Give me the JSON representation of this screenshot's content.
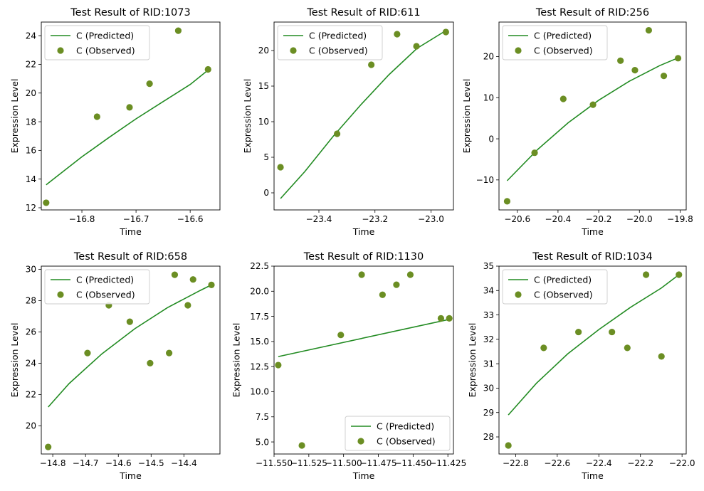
{
  "chart_data": [
    {
      "type": "scatter",
      "title": "Test Result of RID:1073",
      "xlabel": "Time",
      "ylabel": "Expression Level",
      "xlim": [
        -16.875,
        -16.545
      ],
      "ylim": [
        11.85,
        24.95
      ],
      "xticks": [
        -16.8,
        -16.7,
        -16.6
      ],
      "xtick_labels": [
        "−16.8",
        "−16.7",
        "−16.6"
      ],
      "yticks": [
        12,
        14,
        16,
        18,
        20,
        22,
        24
      ],
      "ytick_labels": [
        "12",
        "14",
        "16",
        "18",
        "20",
        "22",
        "24"
      ],
      "legend_position": "upper-left",
      "series": [
        {
          "name": "C (Predicted)",
          "kind": "line",
          "color": "#228b22",
          "x": [
            -16.866,
            -16.8,
            -16.75,
            -16.7,
            -16.65,
            -16.6,
            -16.567
          ],
          "y": [
            13.6,
            15.55,
            16.9,
            18.2,
            19.4,
            20.6,
            21.6
          ]
        },
        {
          "name": "C (Observed)",
          "kind": "scatter",
          "color": "#6b8e23",
          "x": [
            -16.866,
            -16.772,
            -16.712,
            -16.675,
            -16.622,
            -16.567
          ],
          "y": [
            12.35,
            18.35,
            19.0,
            20.65,
            24.35,
            21.65
          ]
        }
      ]
    },
    {
      "type": "scatter",
      "title": "Test Result of RID:611",
      "xlabel": "Time",
      "ylabel": "Expression Level",
      "xlim": [
        -23.56,
        -22.92
      ],
      "ylim": [
        -2.4,
        24.0
      ],
      "xticks": [
        -23.4,
        -23.2,
        -23.0
      ],
      "xtick_labels": [
        "−23.4",
        "−23.2",
        "−23.0"
      ],
      "yticks": [
        0,
        5,
        10,
        15,
        20
      ],
      "ytick_labels": [
        "0",
        "5",
        "10",
        "15",
        "20"
      ],
      "legend_position": "upper-left",
      "series": [
        {
          "name": "C (Predicted)",
          "kind": "line",
          "color": "#228b22",
          "x": [
            -23.537,
            -23.45,
            -23.35,
            -23.25,
            -23.15,
            -23.05,
            -22.947
          ],
          "y": [
            -0.8,
            3.0,
            7.9,
            12.4,
            16.6,
            20.3,
            22.8
          ]
        },
        {
          "name": "C (Observed)",
          "kind": "scatter",
          "color": "#6b8e23",
          "x": [
            -23.537,
            -23.335,
            -23.213,
            -23.121,
            -23.052,
            -22.947
          ],
          "y": [
            3.6,
            8.3,
            18.0,
            22.3,
            20.6,
            22.6
          ]
        }
      ]
    },
    {
      "type": "scatter",
      "title": "Test Result of RID:256",
      "xlabel": "Time",
      "ylabel": "Expression Level",
      "xlim": [
        -20.69,
        -19.77
      ],
      "ylim": [
        -17.3,
        28.4
      ],
      "xticks": [
        -20.6,
        -20.4,
        -20.2,
        -20.0,
        -19.8
      ],
      "xtick_labels": [
        "−20.6",
        "−20.4",
        "−20.2",
        "−20.0",
        "−19.8"
      ],
      "yticks": [
        -10,
        0,
        10,
        20
      ],
      "ytick_labels": [
        "−10",
        "0",
        "10",
        "20"
      ],
      "legend_position": "upper-left",
      "series": [
        {
          "name": "C (Predicted)",
          "kind": "line",
          "color": "#228b22",
          "x": [
            -20.65,
            -20.5,
            -20.35,
            -20.2,
            -20.05,
            -19.9,
            -19.81
          ],
          "y": [
            -10.2,
            -2.6,
            3.9,
            9.4,
            14.0,
            17.8,
            19.7
          ]
        },
        {
          "name": "C (Observed)",
          "kind": "scatter",
          "color": "#6b8e23",
          "x": [
            -20.65,
            -20.515,
            -20.374,
            -20.228,
            -20.093,
            -20.022,
            -19.954,
            -19.88,
            -19.81
          ],
          "y": [
            -15.2,
            -3.4,
            9.7,
            8.3,
            19.0,
            16.7,
            26.4,
            15.3,
            19.6
          ]
        }
      ]
    },
    {
      "type": "scatter",
      "title": "Test Result of RID:658",
      "xlabel": "Time",
      "ylabel": "Expression Level",
      "xlim": [
        -14.835,
        -14.29
      ],
      "ylim": [
        18.2,
        30.2
      ],
      "xticks": [
        -14.8,
        -14.7,
        -14.6,
        -14.5,
        -14.4
      ],
      "xtick_labels": [
        "−14.8",
        "−14.7",
        "−14.6",
        "−14.5",
        "−14.4"
      ],
      "yticks": [
        20,
        22,
        24,
        26,
        28,
        30
      ],
      "ytick_labels": [
        "20",
        "22",
        "24",
        "26",
        "28",
        "30"
      ],
      "legend_position": "upper-left",
      "series": [
        {
          "name": "C (Predicted)",
          "kind": "line",
          "color": "#228b22",
          "x": [
            -14.814,
            -14.75,
            -14.65,
            -14.55,
            -14.45,
            -14.35,
            -14.316
          ],
          "y": [
            21.2,
            22.7,
            24.6,
            26.2,
            27.55,
            28.65,
            29.0
          ]
        },
        {
          "name": "C (Observed)",
          "kind": "scatter",
          "color": "#6b8e23",
          "x": [
            -14.814,
            -14.694,
            -14.629,
            -14.565,
            -14.503,
            -14.445,
            -14.428,
            -14.388,
            -14.372,
            -14.316
          ],
          "y": [
            18.65,
            24.65,
            27.7,
            26.65,
            24.0,
            24.65,
            29.65,
            27.7,
            29.35,
            29.0
          ]
        }
      ]
    },
    {
      "type": "scatter",
      "title": "Test Result of RID:1130",
      "xlabel": "Time",
      "ylabel": "Expression Level",
      "xlim": [
        -11.55,
        -11.421
      ],
      "ylim": [
        3.8,
        22.5
      ],
      "xticks": [
        -11.55,
        -11.525,
        -11.5,
        -11.475,
        -11.45,
        -11.425
      ],
      "xtick_labels": [
        "−11.550",
        "−11.525",
        "−11.500",
        "−11.475",
        "−11.450",
        "−11.425"
      ],
      "yticks": [
        5.0,
        7.5,
        10.0,
        12.5,
        15.0,
        17.5,
        20.0,
        22.5
      ],
      "ytick_labels": [
        "5.0",
        "7.5",
        "10.0",
        "12.5",
        "15.0",
        "17.5",
        "20.0",
        "22.5"
      ],
      "legend_position": "lower-right",
      "series": [
        {
          "name": "C (Predicted)",
          "kind": "line",
          "color": "#228b22",
          "x": [
            -11.547,
            -11.424
          ],
          "y": [
            13.5,
            17.2
          ]
        },
        {
          "name": "C (Observed)",
          "kind": "scatter",
          "color": "#6b8e23",
          "x": [
            -11.547,
            -11.53,
            -11.502,
            -11.487,
            -11.472,
            -11.462,
            -11.452,
            -11.43,
            -11.424
          ],
          "y": [
            12.65,
            4.65,
            15.65,
            21.65,
            19.65,
            20.65,
            21.65,
            17.3,
            17.3
          ]
        }
      ]
    },
    {
      "type": "scatter",
      "title": "Test Result of RID:1034",
      "xlabel": "Time",
      "ylabel": "Expression Level",
      "xlim": [
        -22.88,
        -21.98
      ],
      "ylim": [
        27.3,
        35.0
      ],
      "xticks": [
        -22.8,
        -22.6,
        -22.4,
        -22.2,
        -22.0
      ],
      "xtick_labels": [
        "−22.8",
        "−22.6",
        "−22.4",
        "−22.2",
        "−22.0"
      ],
      "yticks": [
        28,
        29,
        30,
        31,
        32,
        33,
        34,
        35
      ],
      "ytick_labels": [
        "28",
        "29",
        "30",
        "31",
        "32",
        "33",
        "34",
        "35"
      ],
      "legend_position": "upper-left",
      "series": [
        {
          "name": "C (Predicted)",
          "kind": "line",
          "color": "#228b22",
          "x": [
            -22.835,
            -22.7,
            -22.55,
            -22.4,
            -22.25,
            -22.1,
            -22.015
          ],
          "y": [
            28.9,
            30.2,
            31.4,
            32.4,
            33.3,
            34.1,
            34.65
          ]
        },
        {
          "name": "C (Observed)",
          "kind": "scatter",
          "color": "#6b8e23",
          "x": [
            -22.835,
            -22.665,
            -22.498,
            -22.337,
            -22.263,
            -22.173,
            -22.099,
            -22.015
          ],
          "y": [
            27.65,
            31.65,
            32.3,
            32.3,
            31.65,
            34.65,
            31.3,
            34.65
          ]
        }
      ]
    }
  ]
}
